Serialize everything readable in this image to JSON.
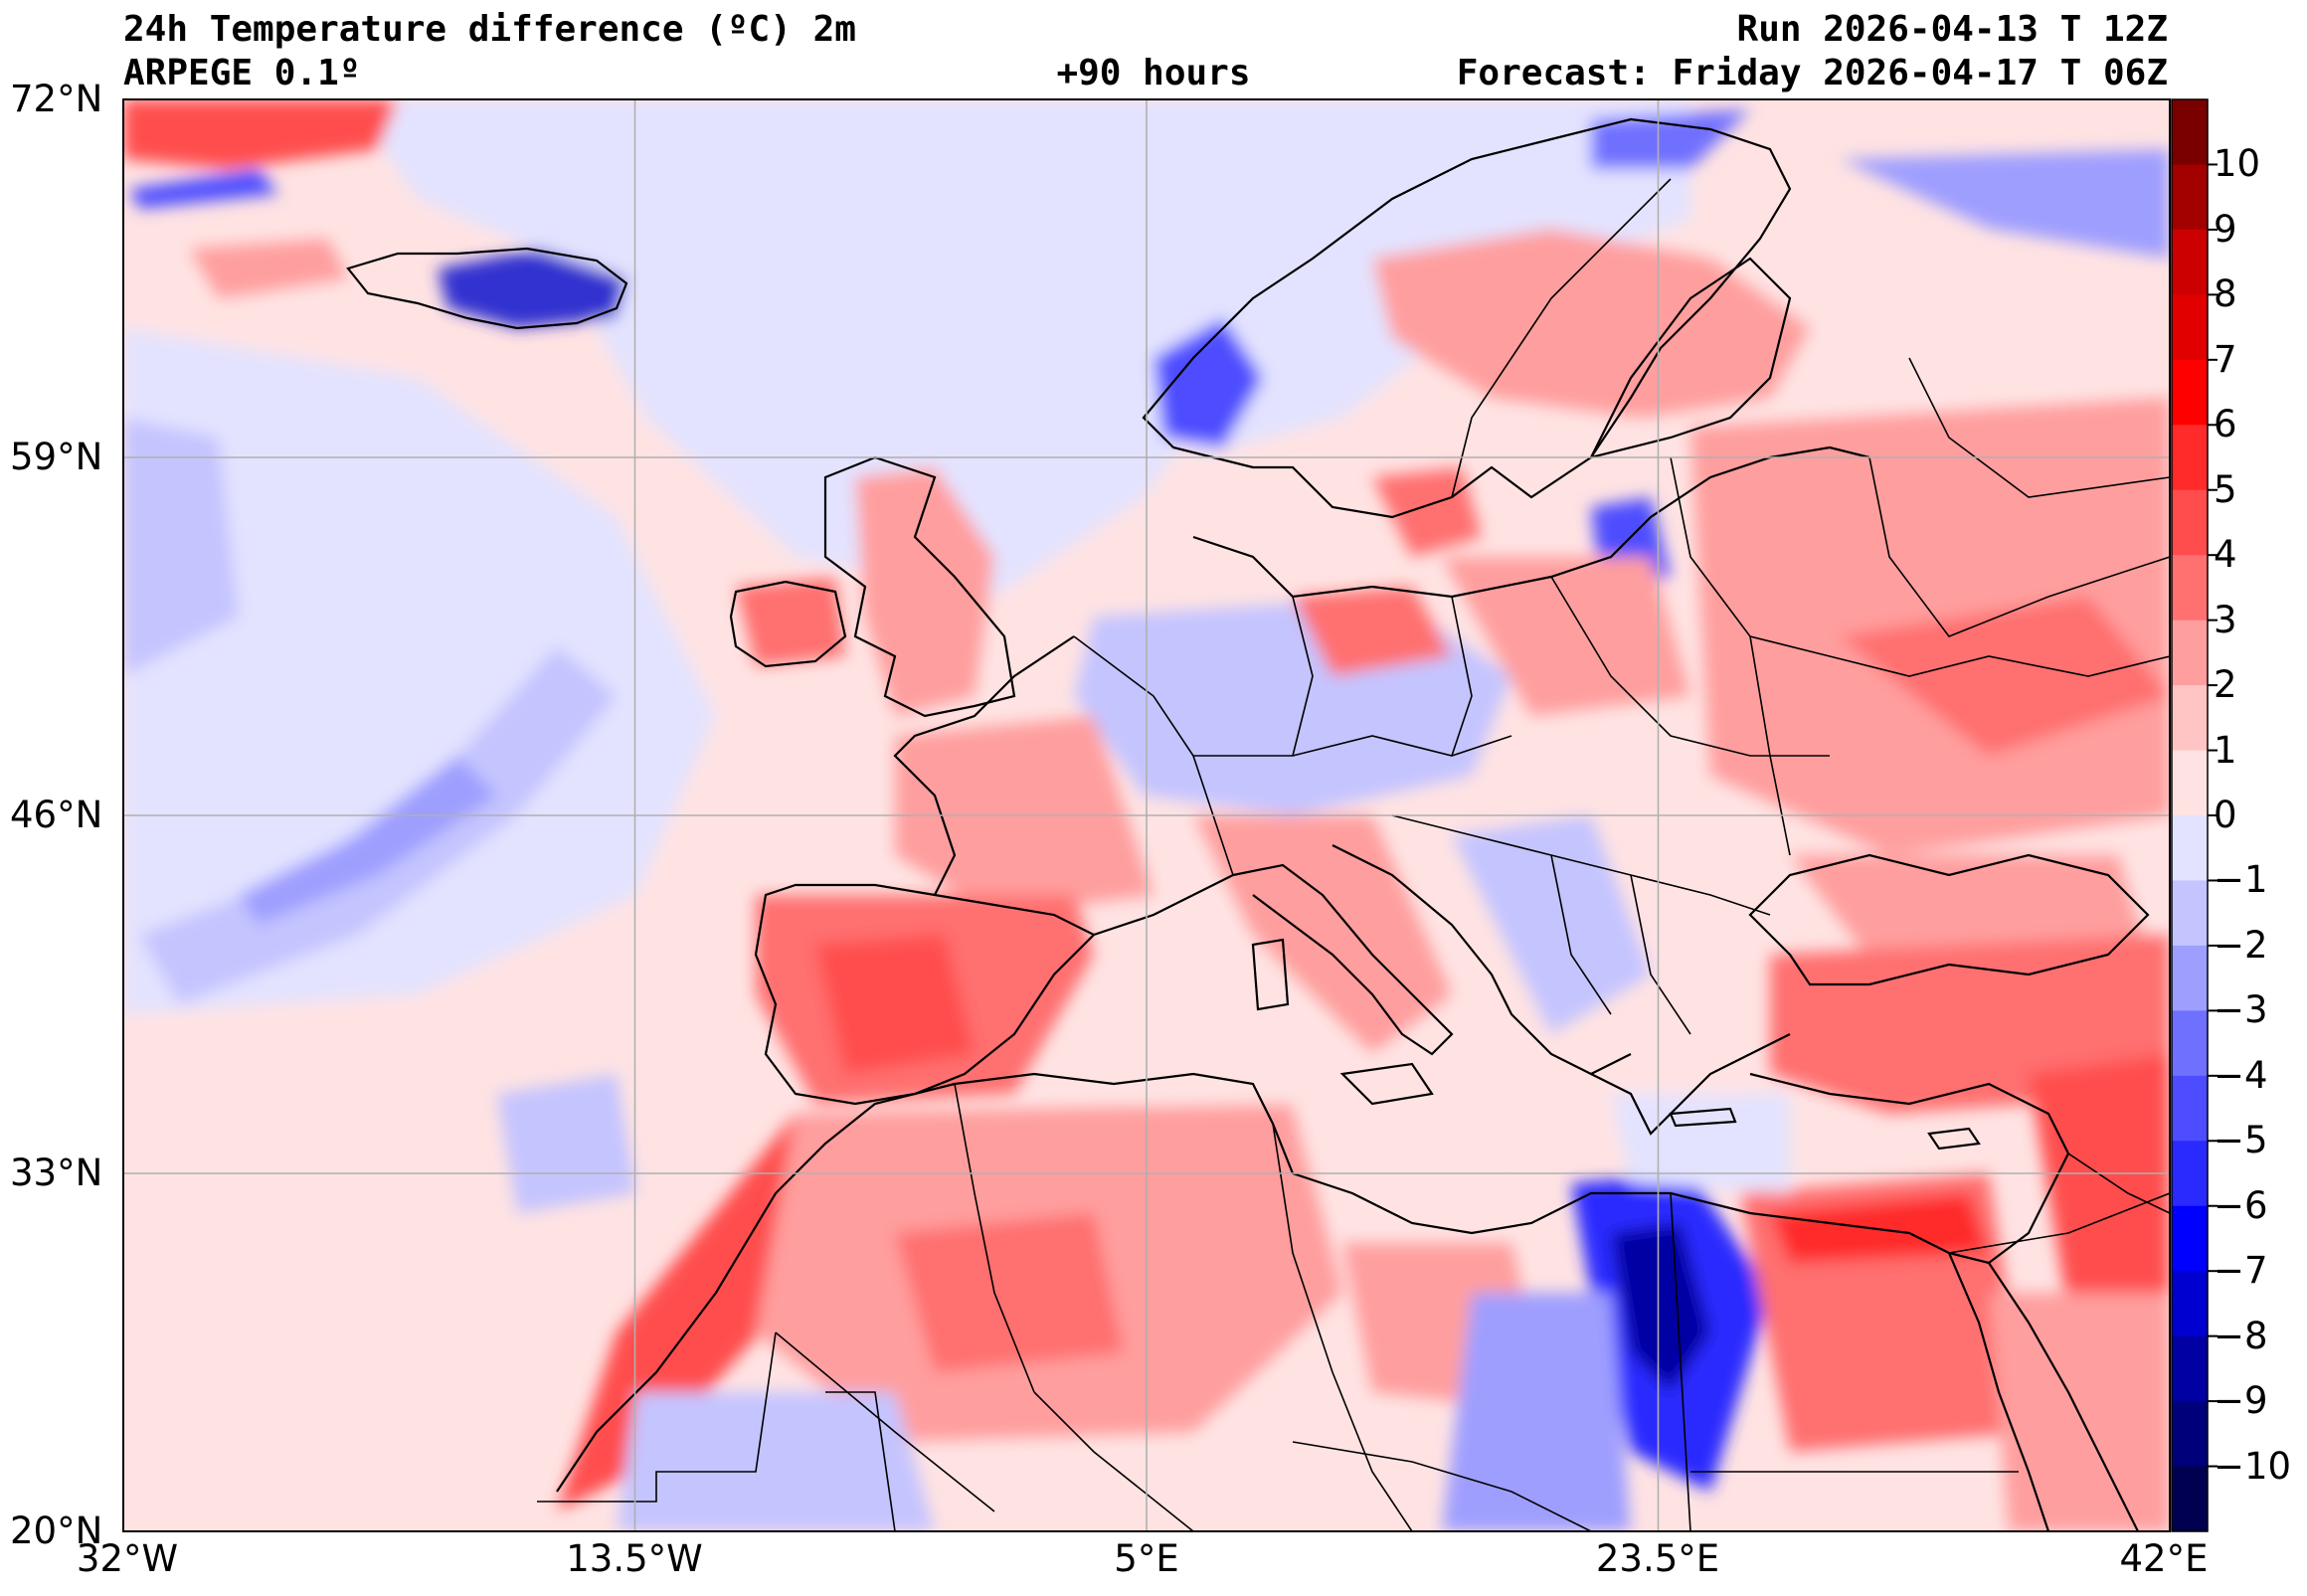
{
  "header": {
    "title": "24h Temperature difference (ºC) 2m",
    "model": "ARPEGE 0.1º",
    "lead_time": "+90 hours",
    "run": "Run 2026-04-13 T 12Z",
    "forecast": "Forecast: Friday 2026-04-17 T 06Z"
  },
  "axes": {
    "lat_labels": [
      "72°N",
      "59°N",
      "46°N",
      "33°N",
      "20°N"
    ],
    "lon_labels": [
      "32°W",
      "13.5°W",
      "5°E",
      "23.5°E",
      "42°E"
    ]
  },
  "colorbar": {
    "labels": [
      "10",
      "9",
      "8",
      "7",
      "6",
      "5",
      "4",
      "3",
      "2",
      "1",
      "0",
      "−1",
      "−2",
      "−3",
      "−4",
      "−5",
      "−6",
      "−7",
      "−8",
      "−9",
      "−10"
    ],
    "colors": [
      "#7a0000",
      "#a30000",
      "#cc0000",
      "#e00000",
      "#ff0000",
      "#ff2a2a",
      "#ff4d4d",
      "#ff7070",
      "#ff9e9e",
      "#ffc4c4",
      "#ffe3e3",
      "#e3e3ff",
      "#c4c4ff",
      "#9e9eff",
      "#7070ff",
      "#4d4dff",
      "#2a2aff",
      "#0000ff",
      "#0000d0",
      "#0000a3",
      "#00007a",
      "#000050"
    ],
    "land_color": "#ffffff"
  },
  "map": {
    "ocean_background": "#ffe3e3",
    "extent": {
      "lon": [
        -32,
        42
      ],
      "lat": [
        20,
        72
      ]
    }
  }
}
